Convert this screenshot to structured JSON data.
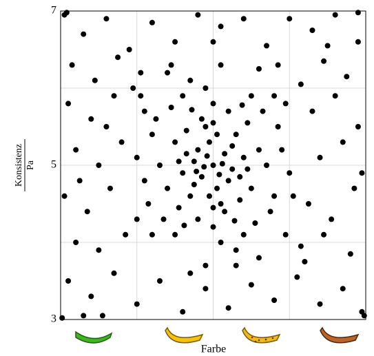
{
  "chart_data": {
    "type": "scatter",
    "x_label": "Farbe",
    "y_label_numerator": "Konsistenz",
    "y_label_denominator": "Pa",
    "xlim": [
      0,
      4
    ],
    "xticks": [
      1,
      2,
      3
    ],
    "ylim": [
      3,
      7
    ],
    "yticks": [
      3,
      5,
      7
    ],
    "y_minor_ticks": [
      4,
      6
    ],
    "grid": true,
    "x": [
      0.05,
      0.3,
      0.6,
      0.9,
      1.2,
      1.5,
      1.8,
      2.1,
      2.4,
      2.7,
      3.0,
      3.3,
      3.6,
      3.9,
      0.15,
      0.45,
      0.75,
      1.05,
      2.85,
      3.15,
      3.45,
      3.75,
      0.1,
      0.4,
      0.7,
      3.3,
      3.6,
      3.9,
      0.2,
      0.5,
      0.8,
      3.4,
      3.7,
      3.95,
      0.05,
      0.35,
      0.65,
      3.25,
      3.55,
      3.85,
      0.2,
      0.5,
      0.85,
      3.15,
      3.45,
      3.8,
      0.1,
      0.4,
      0.7,
      1.0,
      1.3,
      1.6,
      1.9,
      2.2,
      2.5,
      2.8,
      3.1,
      3.4,
      3.7,
      3.95,
      0.02,
      0.3,
      3.98,
      3.9,
      0.08,
      1.1,
      2.95,
      1.0,
      3.05,
      0.6,
      3.5,
      0.25,
      2.0,
      1.7,
      2.3,
      0.95,
      3.2,
      0.55,
      1.45,
      2.6,
      2.0,
      1.8,
      2.2,
      1.6,
      2.4,
      1.9,
      2.1,
      1.7,
      2.3,
      1.5,
      2.5,
      2.0,
      2.0,
      1.4,
      2.6,
      1.85,
      2.15,
      1.75,
      2.25,
      1.95,
      2.05,
      1.65,
      2.35,
      1.55,
      2.45,
      1.3,
      2.7,
      1.9,
      2.1,
      1.2,
      2.8,
      1.45,
      2.55,
      1.35,
      2.65,
      1.7,
      2.3,
      1.1,
      2.9,
      1.6,
      2.4,
      1.8,
      2.2,
      1.25,
      2.75,
      1.15,
      2.85,
      1.5,
      2.5,
      1.95,
      2.05,
      1.85,
      2.15,
      1.75,
      2.25,
      1.65,
      2.35,
      1.55,
      2.45,
      1.0,
      3.0,
      1.4,
      2.6,
      1.9,
      2.1,
      1.05,
      2.95,
      1.2,
      2.8,
      2.0,
      2.0,
      1.72,
      2.28,
      1.62,
      2.38,
      1.88,
      2.12,
      1.92,
      2.08,
      1.78
    ],
    "series": [
      {
        "color": "#000000",
        "values": [
          6.95,
          6.7,
          6.9,
          6.5,
          6.85,
          6.6,
          6.95,
          6.8,
          6.9,
          6.55,
          6.9,
          6.75,
          6.95,
          6.6,
          6.3,
          6.1,
          6.4,
          6.2,
          6.3,
          6.05,
          6.35,
          6.15,
          5.8,
          5.6,
          5.9,
          5.7,
          5.9,
          5.5,
          5.2,
          5.0,
          5.3,
          5.1,
          5.3,
          4.9,
          4.6,
          4.4,
          4.7,
          4.5,
          4.3,
          4.7,
          4.0,
          3.9,
          4.1,
          3.95,
          4.1,
          3.85,
          3.5,
          3.3,
          3.6,
          3.2,
          3.5,
          3.1,
          3.4,
          3.15,
          3.45,
          3.25,
          3.55,
          3.2,
          3.4,
          3.1,
          3.02,
          3.05,
          3.05,
          6.98,
          6.98,
          5.7,
          5.8,
          4.3,
          4.6,
          5.5,
          6.55,
          4.8,
          6.6,
          3.6,
          3.7,
          6.0,
          3.75,
          3.05,
          6.3,
          6.25,
          5.0,
          5.2,
          4.8,
          4.9,
          5.1,
          5.5,
          4.5,
          4.6,
          5.4,
          5.3,
          4.7,
          5.8,
          4.2,
          4.7,
          5.2,
          4.85,
          5.15,
          5.05,
          4.95,
          5.3,
          4.7,
          5.45,
          4.55,
          4.45,
          5.55,
          5.0,
          5.0,
          6.0,
          4.0,
          5.4,
          4.6,
          5.75,
          4.25,
          4.3,
          5.7,
          6.1,
          3.9,
          4.8,
          5.2,
          5.9,
          4.1,
          4.3,
          5.7,
          5.6,
          4.4,
          4.5,
          5.5,
          4.1,
          5.9,
          4.6,
          5.4,
          5.6,
          4.4,
          4.75,
          5.25,
          5.15,
          4.85,
          5.05,
          4.95,
          5.1,
          4.9,
          6.2,
          3.8,
          3.7,
          6.3,
          5.9,
          4.1,
          4.1,
          5.9,
          5.55,
          4.45,
          5.72,
          4.28,
          4.22,
          5.78,
          4.98,
          5.02,
          5.12,
          4.88,
          4.92
        ]
      }
    ]
  }
}
